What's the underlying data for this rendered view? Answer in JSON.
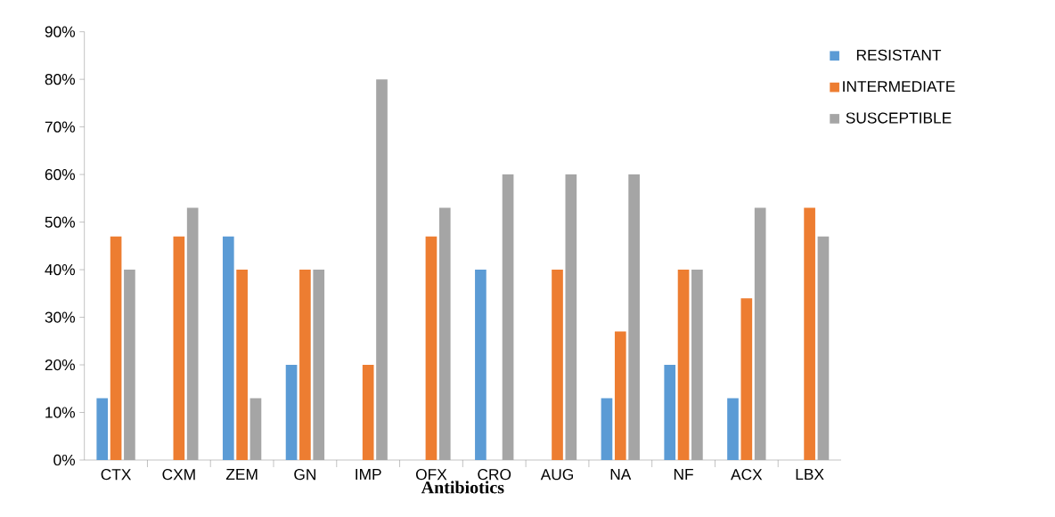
{
  "chart_data": {
    "type": "bar",
    "xlabel": "Antibiotics",
    "categories": [
      "CTX",
      "CXM",
      "ZEM",
      "GN",
      "IMP",
      "OFX",
      "CRO",
      "AUG",
      "NA",
      "NF",
      "ACX",
      "LBX"
    ],
    "series": [
      {
        "name": "RESISTANT",
        "color": "#5b9bd5",
        "values": [
          13,
          0,
          47,
          20,
          0,
          0,
          40,
          0,
          13,
          20,
          13,
          0
        ]
      },
      {
        "name": "INTERMEDIATE",
        "color": "#ed7d31",
        "values": [
          47,
          47,
          40,
          40,
          20,
          47,
          0,
          40,
          27,
          40,
          34,
          53
        ]
      },
      {
        "name": "SUSCEPTIBLE",
        "color": "#a5a5a5",
        "values": [
          40,
          53,
          13,
          40,
          80,
          53,
          60,
          60,
          60,
          40,
          53,
          47
        ]
      }
    ],
    "ylim": [
      0,
      90
    ],
    "yticks": [
      {
        "value": 0,
        "label": "0%"
      },
      {
        "value": 10,
        "label": "10%"
      },
      {
        "value": 20,
        "label": "20%"
      },
      {
        "value": 30,
        "label": "30%"
      },
      {
        "value": 40,
        "label": "40%"
      },
      {
        "value": 50,
        "label": "50%"
      },
      {
        "value": 60,
        "label": "60%"
      },
      {
        "value": 70,
        "label": "70%"
      },
      {
        "value": 80,
        "label": "80%"
      },
      {
        "value": 90,
        "label": "90%"
      }
    ],
    "legend": "right"
  }
}
